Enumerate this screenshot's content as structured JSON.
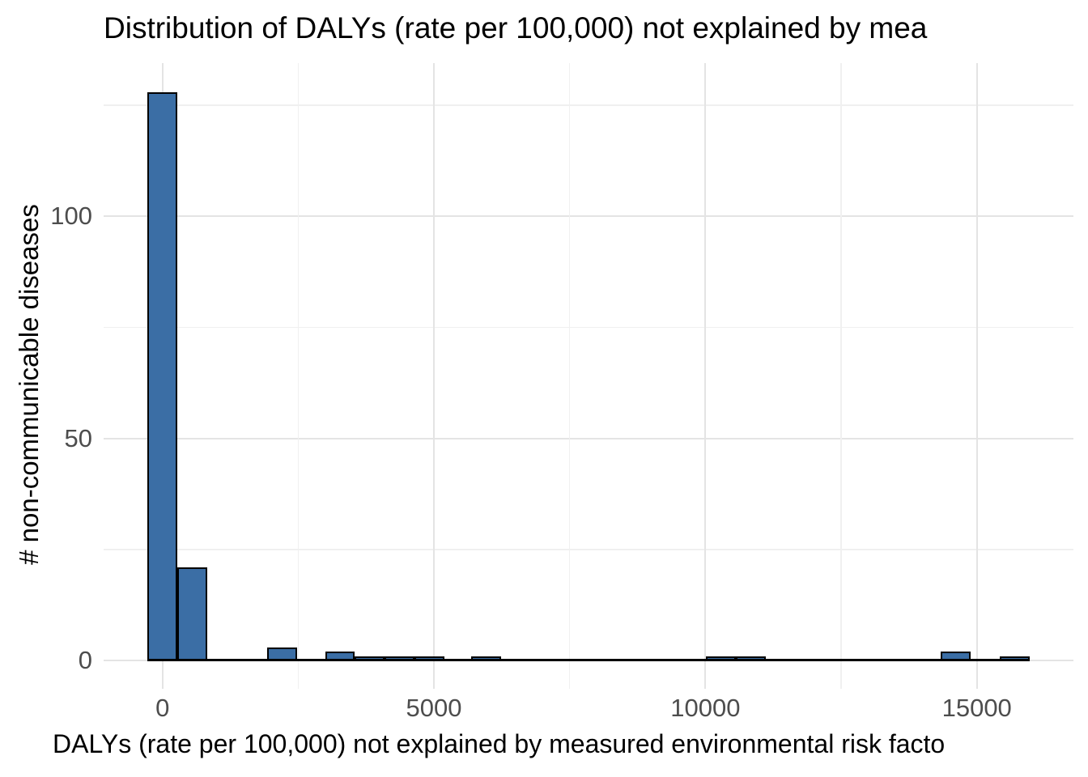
{
  "chart_data": {
    "type": "histogram",
    "title": "Distribution of DALYs (rate per 100,000) not explained by mea",
    "xlabel": "DALYs (rate per 100,000) not explained by measured environmental risk facto",
    "ylabel": "# non-communicable diseases",
    "x_tick_labels": [
      "0",
      "5000",
      "10000",
      "15000"
    ],
    "x_major_ticks": [
      0,
      5000,
      10000,
      15000
    ],
    "x_minor_ticks": [
      2500,
      7500,
      12500
    ],
    "y_tick_labels": [
      "0",
      "50",
      "100"
    ],
    "y_major_ticks": [
      0,
      50,
      100
    ],
    "y_minor_ticks": [
      25,
      75,
      125
    ],
    "xlim": [
      -820,
      16190
    ],
    "ylim": [
      -6.4,
      134.6
    ],
    "bin_width": 550,
    "bins": [
      {
        "center": 0,
        "count": 128
      },
      {
        "center": 550,
        "count": 21
      },
      {
        "center": 2200,
        "count": 3
      },
      {
        "center": 3270,
        "count": 2
      },
      {
        "center": 3820,
        "count": 1
      },
      {
        "center": 4370,
        "count": 1
      },
      {
        "center": 4920,
        "count": 1
      },
      {
        "center": 5960,
        "count": 1
      },
      {
        "center": 10290,
        "count": 1
      },
      {
        "center": 10840,
        "count": 1
      },
      {
        "center": 14610,
        "count": 2
      },
      {
        "center": 15700,
        "count": 1
      }
    ],
    "total_count": 163,
    "legend": "none",
    "grid": "major and minor, light gray on white",
    "colors": {
      "bar_fill": "#3B6EA5",
      "bar_stroke": "#000000",
      "grid_major": "#E4E4E4",
      "grid_minor": "#F0F0F0",
      "tick_text": "#4D4D4D",
      "label_text": "#000000",
      "background": "#FFFFFF"
    }
  }
}
